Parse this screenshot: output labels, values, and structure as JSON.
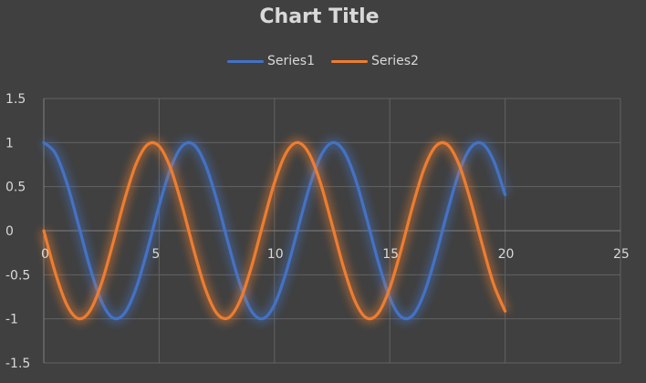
{
  "colors": {
    "background": "#404040",
    "grid": "#626262",
    "axis": "#7f7f7f",
    "text": "#d9d9d9"
  },
  "chart_data": {
    "type": "scatter",
    "title": "Chart Title",
    "xlabel": "",
    "ylabel": "",
    "xlim": [
      0,
      25
    ],
    "ylim": [
      -1.5,
      1.5
    ],
    "x_ticks": [
      0,
      5,
      10,
      15,
      20,
      25
    ],
    "y_ticks": [
      1.5,
      1,
      0.5,
      0,
      -0.5,
      -1,
      -1.5
    ],
    "x_tick_labels": [
      "0",
      "5",
      "10",
      "15",
      "20",
      "25"
    ],
    "y_tick_labels": [
      "1.5",
      "1",
      "0.5",
      "0",
      "-0.5",
      "-1",
      "-1.5"
    ],
    "grid": true,
    "legend_position": "top",
    "smooth_lines": true,
    "glow_effect": true,
    "series": [
      {
        "name": "Series1",
        "color": "#4472c4",
        "x": [
          0,
          0.5,
          1,
          1.5,
          2,
          2.5,
          3,
          3.5,
          4,
          4.5,
          5,
          5.5,
          6,
          6.5,
          7,
          7.5,
          8,
          8.5,
          9,
          9.5,
          10,
          10.5,
          11,
          11.5,
          12,
          12.5,
          13,
          13.5,
          14,
          14.5,
          15,
          15.5,
          16,
          16.5,
          17,
          17.5,
          18,
          18.5,
          19,
          19.5,
          20
        ],
        "y": [
          1,
          0.878,
          0.54,
          0.071,
          -0.416,
          -0.801,
          -0.99,
          -0.936,
          -0.654,
          -0.211,
          0.284,
          0.709,
          0.96,
          0.977,
          0.754,
          0.347,
          -0.146,
          -0.602,
          -0.911,
          -0.997,
          -0.839,
          -0.476,
          0.004,
          0.483,
          0.844,
          0.998,
          0.907,
          0.595,
          0.137,
          -0.355,
          -0.76,
          -0.979,
          -0.958,
          -0.701,
          -0.275,
          0.217,
          0.66,
          0.939,
          0.989,
          0.795,
          0.408
        ]
      },
      {
        "name": "Series2",
        "color": "#ed7d31",
        "x": [
          0,
          0.5,
          1,
          1.5,
          2,
          2.5,
          3,
          3.5,
          4,
          4.5,
          5,
          5.5,
          6,
          6.5,
          7,
          7.5,
          8,
          8.5,
          9,
          9.5,
          10,
          10.5,
          11,
          11.5,
          12,
          12.5,
          13,
          13.5,
          14,
          14.5,
          15,
          15.5,
          16,
          16.5,
          17,
          17.5,
          18,
          18.5,
          19,
          19.5,
          20
        ],
        "y": [
          0,
          -0.479,
          -0.841,
          -0.997,
          -0.909,
          -0.598,
          -0.141,
          0.351,
          0.757,
          0.978,
          0.959,
          0.706,
          0.279,
          -0.215,
          -0.657,
          -0.938,
          -0.989,
          -0.798,
          -0.412,
          0.075,
          0.544,
          0.88,
          1,
          0.875,
          0.537,
          0.066,
          -0.42,
          -0.803,
          -0.991,
          -0.935,
          -0.65,
          -0.207,
          0.288,
          0.712,
          0.961,
          0.976,
          0.751,
          0.342,
          -0.15,
          -0.605,
          -0.913
        ]
      }
    ]
  }
}
